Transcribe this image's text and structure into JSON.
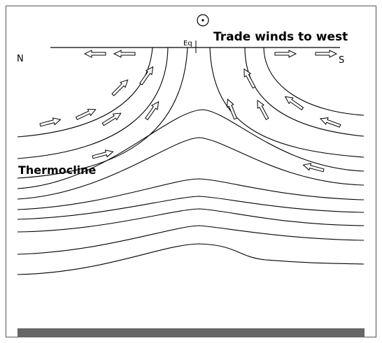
{
  "labels": {
    "winds": "Trade winds to west",
    "north": "N",
    "south": "S",
    "equator": "Eq",
    "thermocline": "Thermocline"
  }
}
